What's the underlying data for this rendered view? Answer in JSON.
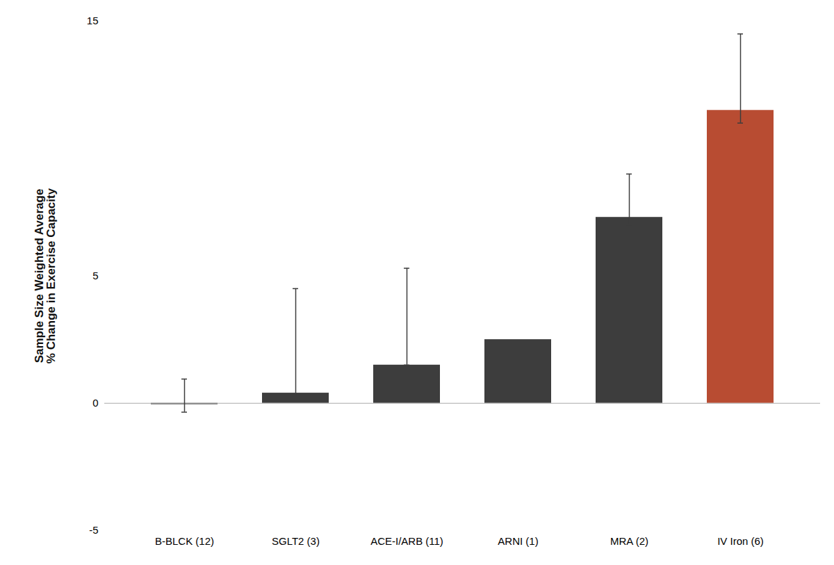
{
  "chart_data": {
    "type": "bar",
    "categories": [
      "B-BLCK (12)",
      "SGLT2 (3)",
      "ACE-I/ARB (11)",
      "ARNI (1)",
      "MRA (2)",
      "IV Iron (6)"
    ],
    "values": [
      -0.05,
      0.4,
      1.5,
      2.5,
      7.3,
      11.5
    ],
    "error_upper": [
      1.0,
      4.1,
      3.8,
      0.0,
      1.7,
      3.0
    ],
    "error_lower": [
      0.3,
      0.1,
      0.0,
      0.0,
      0.3,
      0.5
    ],
    "colors": [
      "#3d3d3d",
      "#3d3d3d",
      "#3d3d3d",
      "#3d3d3d",
      "#3d3d3d",
      "#b84c32"
    ],
    "ylabel": "Sample Size Weighted Average\n% Change in Exercise Capacity",
    "ylim": [
      -5,
      15
    ],
    "yticks": [
      -5,
      0,
      5,
      {
        "value": 10,
        "label": null
      },
      15
    ],
    "grid": false
  }
}
